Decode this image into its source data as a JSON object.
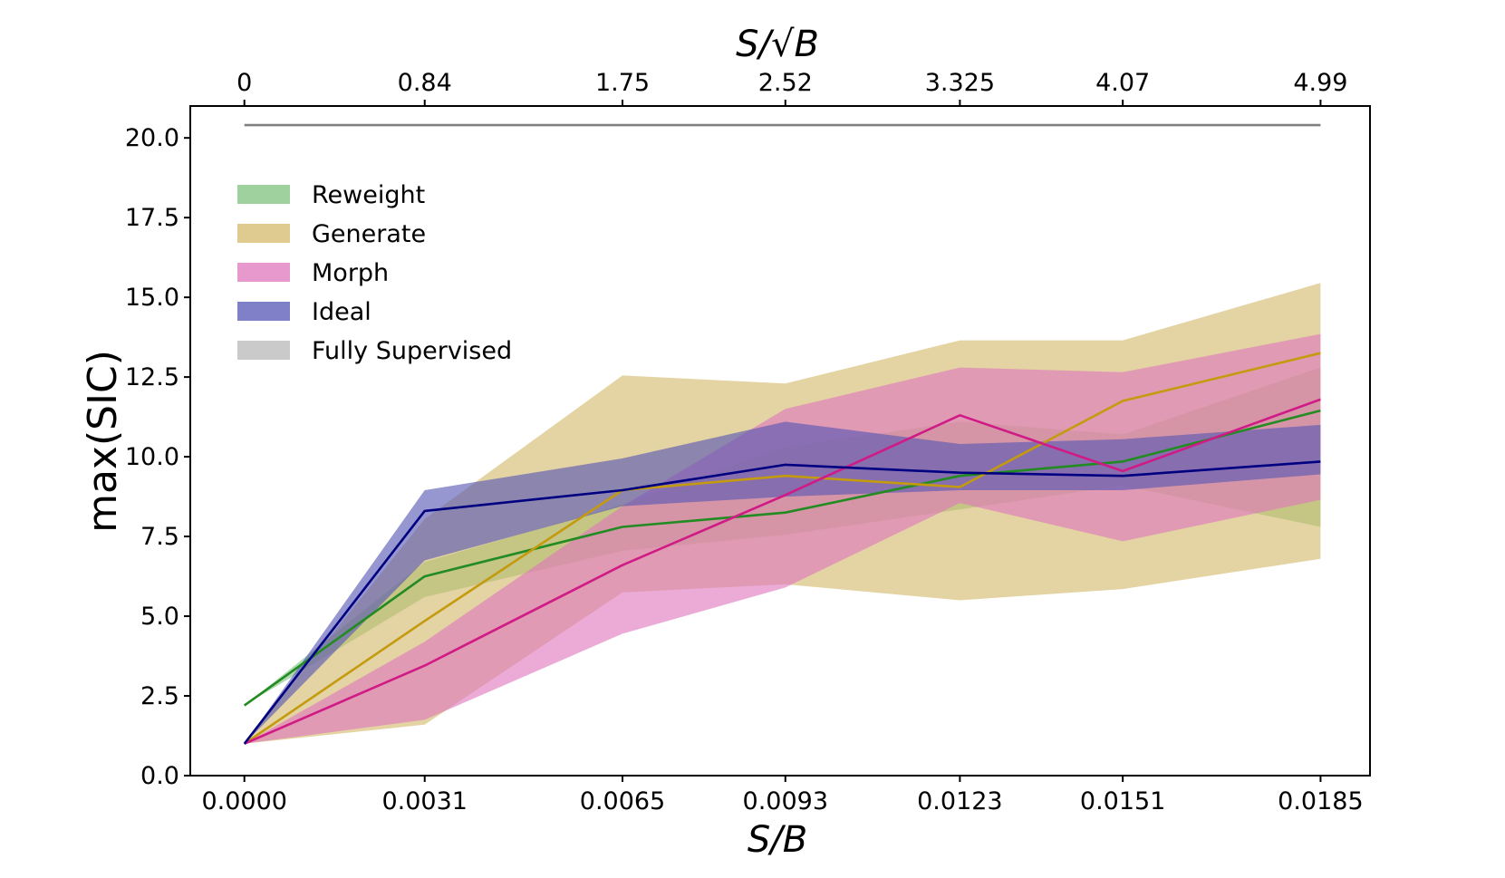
{
  "chart_data": {
    "type": "line",
    "x": [
      0.0,
      0.0031,
      0.0065,
      0.0093,
      0.0123,
      0.0151,
      0.0185
    ],
    "bottom_tick_labels": [
      "0.0000",
      "0.0031",
      "0.0065",
      "0.0093",
      "0.0123",
      "0.0151",
      "0.0185"
    ],
    "top_tick_labels": [
      "0",
      "0.84",
      "1.75",
      "2.52",
      "3.325",
      "4.07",
      "4.99"
    ],
    "xlabel_bottom": "S/B",
    "xlabel_top": "S/√B",
    "ylabel": "max(SIC)",
    "xlim": [
      -0.00093,
      0.01935
    ],
    "ylim": [
      0,
      21
    ],
    "y_ticks": [
      0,
      2.5,
      5,
      7.5,
      10,
      12.5,
      15,
      17.5,
      20
    ],
    "y_tick_labels": [
      "0.0",
      "2.5",
      "5.0",
      "7.5",
      "10.0",
      "12.5",
      "15.0",
      "17.5",
      "20.0"
    ],
    "legend_position": "upper-left",
    "series": [
      {
        "name": "Reweight",
        "color": "#228b22",
        "band_color": "#7ec27e",
        "values": [
          2.2,
          6.25,
          7.8,
          8.25,
          9.4,
          9.85,
          11.45
        ],
        "lower": [
          2.2,
          5.6,
          7.05,
          7.55,
          8.35,
          9.1,
          7.8
        ],
        "upper": [
          2.2,
          6.7,
          8.5,
          10.3,
          11.1,
          10.7,
          12.8
        ]
      },
      {
        "name": "Generate",
        "color": "#c49a0e",
        "band_color": "#d4b86a",
        "values": [
          1.0,
          4.85,
          8.95,
          9.4,
          9.05,
          11.75,
          13.25
        ],
        "lower": [
          1.0,
          1.6,
          5.75,
          6.0,
          5.5,
          5.85,
          6.8
        ],
        "upper": [
          1.0,
          8.05,
          12.55,
          12.3,
          13.65,
          13.65,
          15.45
        ]
      },
      {
        "name": "Morph",
        "color": "#d01a85",
        "band_color": "#df77bd",
        "values": [
          1.0,
          3.45,
          6.6,
          8.8,
          11.3,
          9.55,
          11.8
        ],
        "lower": [
          1.0,
          1.75,
          4.45,
          5.9,
          8.55,
          7.35,
          8.65
        ],
        "upper": [
          1.0,
          4.2,
          8.45,
          11.5,
          12.8,
          12.65,
          13.85
        ]
      },
      {
        "name": "Ideal",
        "color": "#000080",
        "band_color": "#5656b5",
        "values": [
          1.0,
          8.3,
          8.95,
          9.75,
          9.5,
          9.4,
          9.85
        ],
        "lower": [
          1.0,
          6.75,
          8.45,
          8.75,
          8.95,
          8.95,
          9.45
        ],
        "upper": [
          1.0,
          8.95,
          9.95,
          11.1,
          10.4,
          10.55,
          11.0
        ]
      },
      {
        "name": "Fully Supervised",
        "color": "#808080",
        "band_color": "#b8b8b8",
        "values": [
          20.4,
          20.4,
          20.4,
          20.4,
          20.4,
          20.4,
          20.4
        ],
        "lower": [
          20.4,
          20.4,
          20.4,
          20.4,
          20.4,
          20.4,
          20.4
        ],
        "upper": [
          20.4,
          20.4,
          20.4,
          20.4,
          20.4,
          20.4,
          20.4
        ]
      }
    ]
  }
}
